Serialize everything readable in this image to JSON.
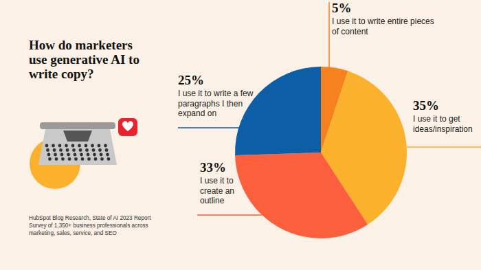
{
  "chart_data": {
    "type": "pie",
    "title": "How do marketers use generative AI to write copy?",
    "categories": [
      "I use it to write entire pieces of content",
      "I use it to get ideas/inspiration",
      "I use it to create an outline",
      "I use it to write a few paragraphs I then expand on"
    ],
    "values": [
      5,
      35,
      33,
      25
    ],
    "value_labels": [
      "5%",
      "35%",
      "33%",
      "25%"
    ],
    "colors": [
      "#f5821f",
      "#fbb12b",
      "#fb5f3c",
      "#0c5ea6"
    ],
    "data_labels": true,
    "annotations": [
      "HubSpot Blog Research, State of AI 2023 Report",
      "Survey of 1,350+ business professionals across",
      "marketing, sales, service, and SEO"
    ]
  }
}
